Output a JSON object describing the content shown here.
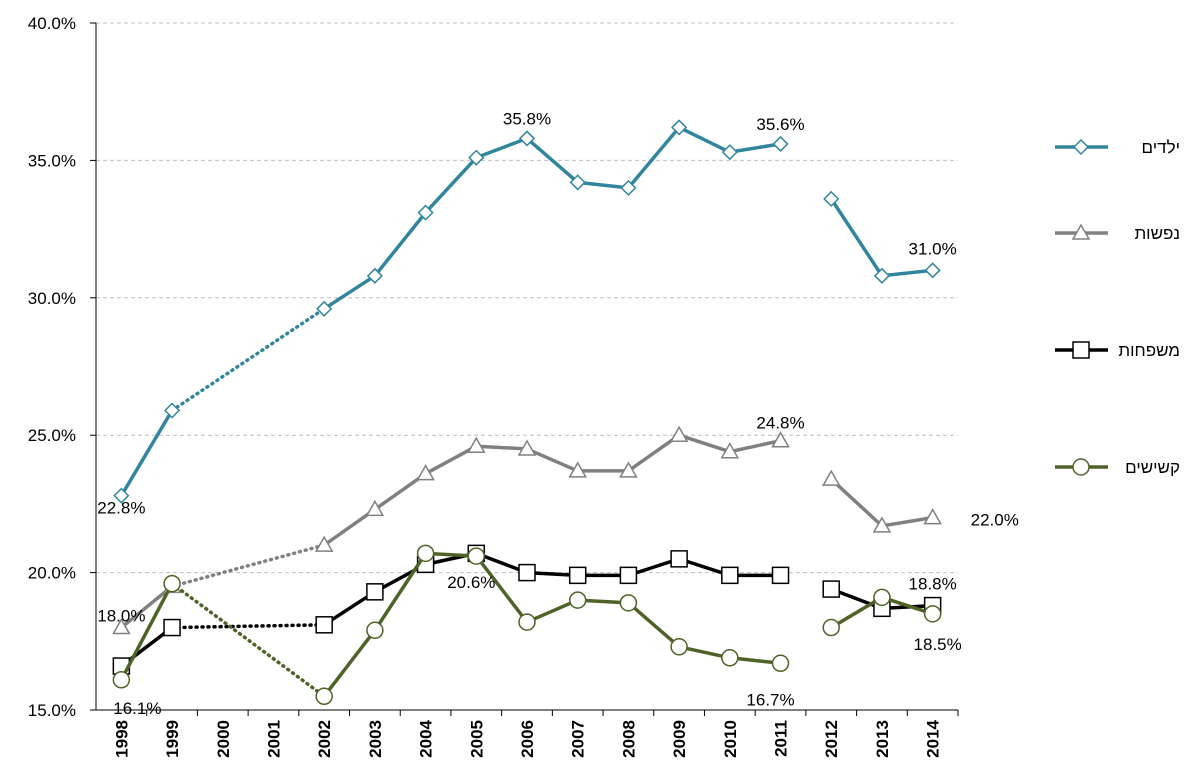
{
  "chart_data": {
    "type": "line",
    "categories": [
      "1998",
      "1999",
      "2000",
      "2001",
      "2002",
      "2003",
      "2004",
      "2005",
      "2006",
      "2007",
      "2008",
      "2009",
      "2010",
      "2011",
      "2012",
      "2013",
      "2014"
    ],
    "series": [
      {
        "name": "ילדים",
        "color": "#31859c",
        "marker": "diamond",
        "values": [
          22.8,
          25.9,
          null,
          null,
          29.6,
          30.8,
          33.1,
          35.1,
          35.8,
          34.2,
          34.0,
          36.2,
          35.3,
          35.6,
          33.6,
          30.8,
          31.0
        ],
        "value_labels": [
          "22.8%",
          null,
          null,
          null,
          null,
          null,
          null,
          null,
          "35.8%",
          null,
          null,
          null,
          null,
          "35.6%",
          null,
          null,
          "31.0%"
        ]
      },
      {
        "name": "נפשות",
        "color": "#808080",
        "marker": "triangle",
        "values": [
          18.0,
          19.5,
          null,
          null,
          21.0,
          22.3,
          23.6,
          24.6,
          24.5,
          23.7,
          23.7,
          25.0,
          24.4,
          24.8,
          23.4,
          21.7,
          22.0
        ],
        "value_labels": [
          "18.0%",
          null,
          null,
          null,
          null,
          null,
          null,
          null,
          null,
          null,
          null,
          null,
          null,
          "24.8%",
          null,
          null,
          "22.0%"
        ]
      },
      {
        "name": "משפחות",
        "color": "#000000",
        "marker": "square",
        "values": [
          16.6,
          18.0,
          null,
          null,
          18.1,
          19.3,
          20.3,
          20.7,
          20.0,
          19.9,
          19.9,
          20.5,
          19.9,
          19.9,
          19.4,
          18.7,
          18.8
        ],
        "value_labels": [
          null,
          null,
          null,
          null,
          null,
          null,
          null,
          null,
          null,
          null,
          null,
          null,
          null,
          null,
          null,
          null,
          "18.8%"
        ]
      },
      {
        "name": "קשישים",
        "color": "#4f6228",
        "marker": "circle",
        "values": [
          16.1,
          19.6,
          null,
          null,
          15.5,
          17.9,
          20.7,
          20.6,
          18.2,
          19.0,
          18.9,
          17.3,
          16.9,
          16.7,
          18.0,
          19.1,
          18.5
        ],
        "value_labels": [
          "16.1%",
          null,
          null,
          null,
          null,
          null,
          null,
          "20.6%",
          null,
          null,
          null,
          null,
          null,
          "16.7%",
          null,
          null,
          "18.5%"
        ]
      }
    ],
    "ylim": [
      15,
      40
    ],
    "yticks": [
      {
        "value": 15,
        "label": "15.0%"
      },
      {
        "value": 20,
        "label": "20.0%"
      },
      {
        "value": 25,
        "label": "25.0%"
      },
      {
        "value": 30,
        "label": "30.0%"
      },
      {
        "value": 35,
        "label": "35.0%"
      },
      {
        "value": 40,
        "label": "40.0%"
      }
    ],
    "grid": true,
    "gap_style": "dotted",
    "line_break_after": "2011",
    "legend": "right"
  }
}
